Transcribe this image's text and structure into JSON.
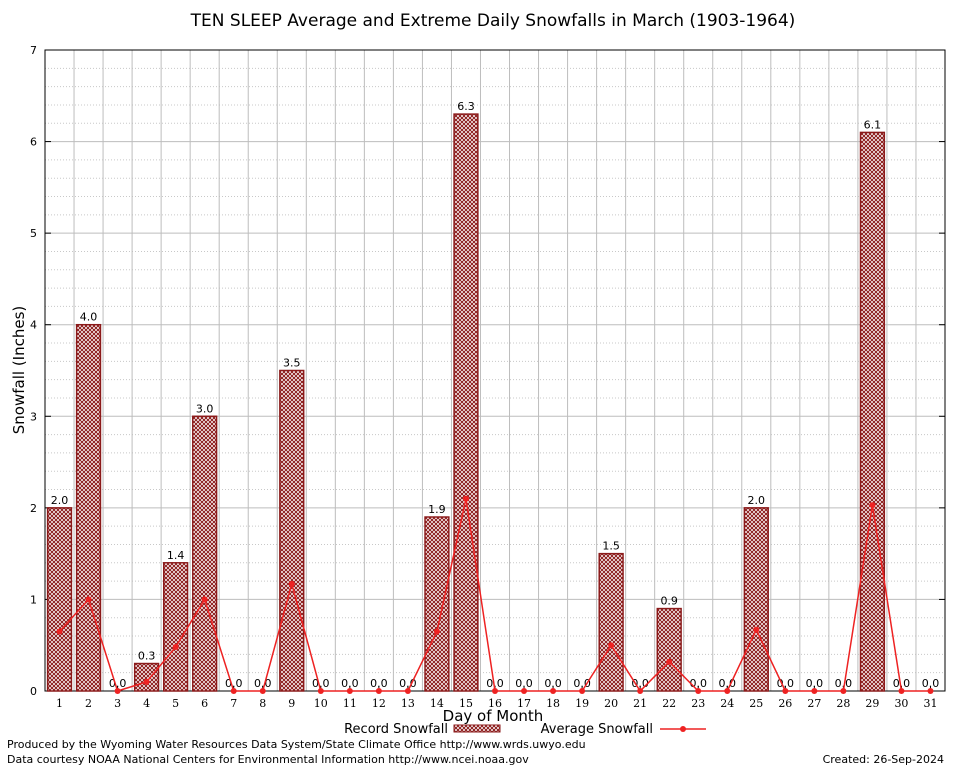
{
  "chart_data": {
    "type": "bar",
    "title": "TEN SLEEP Average and Extreme Daily Snowfalls in March (1903-1964)",
    "xlabel": "Day of Month",
    "ylabel": "Snowfall (Inches)",
    "ylim": [
      0,
      7
    ],
    "yticks": [
      "0",
      "1",
      "2",
      "3",
      "4",
      "5",
      "6",
      "7"
    ],
    "grid": true,
    "legend_position": "bottom",
    "categories": [
      "1",
      "2",
      "3",
      "4",
      "5",
      "6",
      "7",
      "8",
      "9",
      "10",
      "11",
      "12",
      "13",
      "14",
      "15",
      "16",
      "17",
      "18",
      "19",
      "20",
      "21",
      "22",
      "23",
      "24",
      "25",
      "26",
      "27",
      "28",
      "29",
      "30",
      "31"
    ],
    "series": [
      {
        "name": "Record Snowfall",
        "kind": "bar",
        "color": "#8b1a1a",
        "values": [
          2.0,
          4.0,
          0.0,
          0.3,
          1.4,
          3.0,
          0.0,
          0.0,
          3.5,
          0.0,
          0.0,
          0.0,
          0.0,
          1.9,
          6.3,
          0.0,
          0.0,
          0.0,
          0.0,
          1.5,
          0.0,
          0.9,
          0.0,
          0.0,
          2.0,
          0.0,
          0.0,
          0.0,
          6.1,
          0.0,
          0.0
        ],
        "labels": [
          "2.0",
          "4.0",
          "0.0",
          "0.3",
          "1.4",
          "3.0",
          "0.0",
          "0.0",
          "3.5",
          "0.0",
          "0.0",
          "0.0",
          "0.0",
          "1.9",
          "6.3",
          "0.0",
          "0.0",
          "0.0",
          "0.0",
          "1.5",
          "0.0",
          "0.9",
          "0.0",
          "0.0",
          "2.0",
          "0.0",
          "0.0",
          "0.0",
          "6.1",
          "0.0",
          "0.0"
        ]
      },
      {
        "name": "Average Snowfall",
        "kind": "line",
        "color": "#ee2222",
        "values": [
          0.65,
          1.0,
          0.0,
          0.1,
          0.48,
          1.0,
          0.0,
          0.0,
          1.17,
          0.0,
          0.0,
          0.0,
          0.0,
          0.65,
          2.1,
          0.0,
          0.0,
          0.0,
          0.0,
          0.5,
          0.0,
          0.32,
          0.0,
          0.0,
          0.67,
          0.0,
          0.0,
          0.0,
          2.03,
          0.0,
          0.0
        ]
      }
    ]
  },
  "footer": {
    "produced_by": "Produced by the Wyoming Water Resources Data System/State Climate Office http://www.wrds.uwyo.edu",
    "courtesy": "Data courtesy NOAA National Centers for Environmental Information http://www.ncei.noaa.gov",
    "created": "Created:  26-Sep-2024"
  }
}
